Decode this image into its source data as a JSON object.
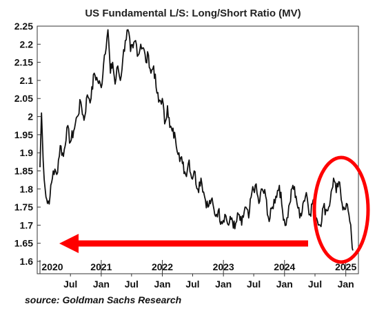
{
  "chart_data": {
    "type": "line",
    "title": "US Fundamental L/S: Long/Short Ratio (MV)",
    "source": "source: Goldman Sachs Research",
    "ylim": [
      1.6,
      2.25
    ],
    "y_ticks": [
      "2.25",
      "2.2",
      "2.15",
      "2.1",
      "2.05",
      "2",
      "1.95",
      "1.9",
      "1.85",
      "1.8",
      "1.75",
      "1.7",
      "1.65",
      "1.6"
    ],
    "x_year_labels": [
      "2020",
      "2021",
      "2022",
      "2023",
      "2024",
      "2025"
    ],
    "x_month_labels": [
      "Jul",
      "Jan",
      "Jul",
      "Jan",
      "Jul",
      "Jan",
      "Jul",
      "Jan",
      "Jul",
      "Jan"
    ],
    "xlim": [
      "2020-01-01",
      "2025-03-01"
    ],
    "grid": false,
    "legend": "none",
    "series": [
      {
        "color": "#111111",
        "points": [
          [
            "2020-01-01",
            1.86
          ],
          [
            "2020-01-10",
            2.01
          ],
          [
            "2020-01-20",
            1.88
          ],
          [
            "2020-02-01",
            1.8
          ],
          [
            "2020-02-15",
            1.76
          ],
          [
            "2020-03-01",
            1.78
          ],
          [
            "2020-03-20",
            1.85
          ],
          [
            "2020-04-10",
            1.84
          ],
          [
            "2020-05-01",
            1.92
          ],
          [
            "2020-05-20",
            1.89
          ],
          [
            "2020-06-10",
            1.97
          ],
          [
            "2020-07-01",
            1.93
          ],
          [
            "2020-07-20",
            1.96
          ],
          [
            "2020-08-10",
            2.0
          ],
          [
            "2020-09-01",
            2.04
          ],
          [
            "2020-09-20",
            1.99
          ],
          [
            "2020-10-10",
            2.06
          ],
          [
            "2020-11-01",
            2.05
          ],
          [
            "2020-11-20",
            2.12
          ],
          [
            "2020-12-10",
            2.1
          ],
          [
            "2021-01-01",
            2.08
          ],
          [
            "2021-01-20",
            2.17
          ],
          [
            "2021-02-10",
            2.24
          ],
          [
            "2021-02-25",
            2.12
          ],
          [
            "2021-03-10",
            2.15
          ],
          [
            "2021-03-25",
            2.09
          ],
          [
            "2021-04-10",
            2.14
          ],
          [
            "2021-04-25",
            2.1
          ],
          [
            "2021-05-10",
            2.16
          ],
          [
            "2021-05-25",
            2.21
          ],
          [
            "2021-06-10",
            2.24
          ],
          [
            "2021-06-25",
            2.18
          ],
          [
            "2021-07-10",
            2.19
          ],
          [
            "2021-07-25",
            2.21
          ],
          [
            "2021-08-10",
            2.17
          ],
          [
            "2021-08-25",
            2.2
          ],
          [
            "2021-09-10",
            2.19
          ],
          [
            "2021-09-25",
            2.15
          ],
          [
            "2021-10-10",
            2.17
          ],
          [
            "2021-10-25",
            2.12
          ],
          [
            "2021-11-10",
            2.14
          ],
          [
            "2021-11-25",
            2.08
          ],
          [
            "2021-12-10",
            2.04
          ],
          [
            "2022-01-01",
            2.05
          ],
          [
            "2022-01-15",
            1.98
          ],
          [
            "2022-02-01",
            2.03
          ],
          [
            "2022-02-15",
            1.97
          ],
          [
            "2022-03-01",
            1.96
          ],
          [
            "2022-03-20",
            1.94
          ],
          [
            "2022-04-10",
            1.9
          ],
          [
            "2022-05-01",
            1.87
          ],
          [
            "2022-05-20",
            1.84
          ],
          [
            "2022-06-10",
            1.88
          ],
          [
            "2022-06-25",
            1.83
          ],
          [
            "2022-07-10",
            1.85
          ],
          [
            "2022-08-01",
            1.8
          ],
          [
            "2022-08-20",
            1.83
          ],
          [
            "2022-09-10",
            1.78
          ],
          [
            "2022-10-01",
            1.75
          ],
          [
            "2022-10-20",
            1.77
          ],
          [
            "2022-11-10",
            1.73
          ],
          [
            "2022-12-01",
            1.74
          ],
          [
            "2022-12-20",
            1.71
          ],
          [
            "2023-01-10",
            1.73
          ],
          [
            "2023-02-01",
            1.7
          ],
          [
            "2023-02-20",
            1.72
          ],
          [
            "2023-03-10",
            1.69
          ],
          [
            "2023-04-01",
            1.73
          ],
          [
            "2023-04-20",
            1.7
          ],
          [
            "2023-05-10",
            1.75
          ],
          [
            "2023-06-01",
            1.72
          ],
          [
            "2023-06-20",
            1.79
          ],
          [
            "2023-07-10",
            1.81
          ],
          [
            "2023-08-01",
            1.76
          ],
          [
            "2023-08-20",
            1.8
          ],
          [
            "2023-09-10",
            1.78
          ],
          [
            "2023-10-01",
            1.71
          ],
          [
            "2023-10-20",
            1.75
          ],
          [
            "2023-11-10",
            1.78
          ],
          [
            "2023-12-01",
            1.81
          ],
          [
            "2023-12-20",
            1.74
          ],
          [
            "2024-01-10",
            1.7
          ],
          [
            "2024-02-01",
            1.76
          ],
          [
            "2024-02-20",
            1.81
          ],
          [
            "2024-03-10",
            1.78
          ],
          [
            "2024-04-01",
            1.72
          ],
          [
            "2024-04-20",
            1.76
          ],
          [
            "2024-05-10",
            1.79
          ],
          [
            "2024-06-01",
            1.73
          ],
          [
            "2024-06-20",
            1.77
          ],
          [
            "2024-07-10",
            1.72
          ],
          [
            "2024-08-01",
            1.7
          ],
          [
            "2024-08-20",
            1.75
          ],
          [
            "2024-09-10",
            1.74
          ],
          [
            "2024-10-01",
            1.77
          ],
          [
            "2024-10-20",
            1.83
          ],
          [
            "2024-11-05",
            1.79
          ],
          [
            "2024-11-20",
            1.82
          ],
          [
            "2024-12-05",
            1.77
          ],
          [
            "2024-12-20",
            1.75
          ],
          [
            "2025-01-05",
            1.76
          ],
          [
            "2025-01-15",
            1.74
          ],
          [
            "2025-01-25",
            1.71
          ],
          [
            "2025-02-05",
            1.66
          ],
          [
            "2025-02-12",
            1.63
          ]
        ]
      }
    ],
    "annotations": {
      "arrow_color": "#ff0000",
      "circle_color": "#ff0000"
    }
  }
}
